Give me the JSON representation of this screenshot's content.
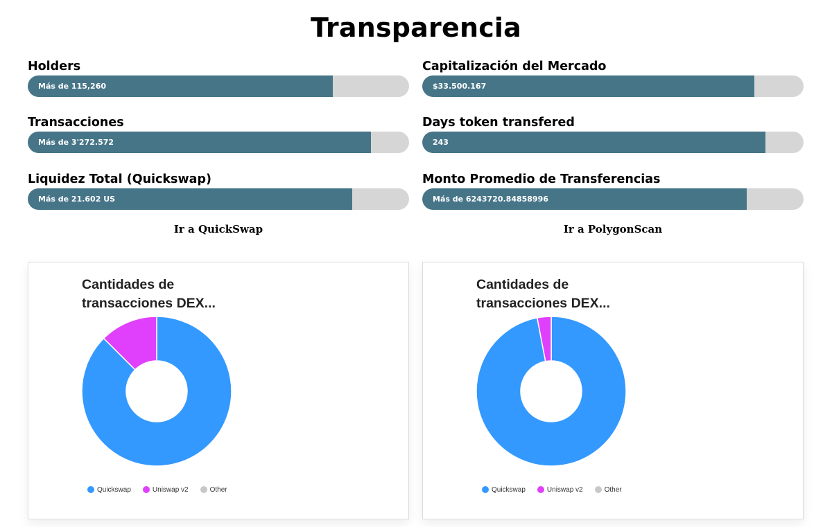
{
  "page": {
    "title": "Transparencia"
  },
  "stats": [
    {
      "label": "Holders",
      "value": "Más de 115,260",
      "fill_pct": 80
    },
    {
      "label": "Capitalización del Mercado",
      "value": "$33.500.167",
      "fill_pct": 87
    },
    {
      "label": "Transacciones",
      "value": "Más de 3'272.572",
      "fill_pct": 90
    },
    {
      "label": "Days token transfered",
      "value": "243",
      "fill_pct": 90
    },
    {
      "label": "Liquidez Total (Quickswap)",
      "value": "Más de 21.602 US",
      "fill_pct": 85
    },
    {
      "label": "Monto Promedio de Transferencias",
      "value": "Más de 6243720.84858996",
      "fill_pct": 85
    }
  ],
  "links": {
    "quickswap": "Ir a QuickSwap",
    "polygonscan": "Ir a PolygonScan"
  },
  "colors": {
    "quickswap": "#3399ff",
    "uniswap": "#e040fb",
    "other": "#c8c8c8",
    "bar_fill": "#467588",
    "bar_track": "#d6d6d6"
  },
  "chart_data": [
    {
      "type": "pie",
      "title": "Cantidades de transacciones DEX...",
      "title_lines": [
        "Cantidades de",
        "transacciones DEX..."
      ],
      "categories": [
        "Quickswap",
        "Uniswap v2",
        "Other"
      ],
      "values": [
        87.5,
        12.5,
        0
      ],
      "legend": "bottom"
    },
    {
      "type": "pie",
      "title": "Cantidades de transacciones DEX...",
      "title_lines": [
        "Cantidades de",
        "transacciones DEX..."
      ],
      "categories": [
        "Quickswap",
        "Uniswap v2",
        "Other"
      ],
      "values": [
        97,
        3,
        0
      ],
      "legend": "bottom"
    }
  ]
}
